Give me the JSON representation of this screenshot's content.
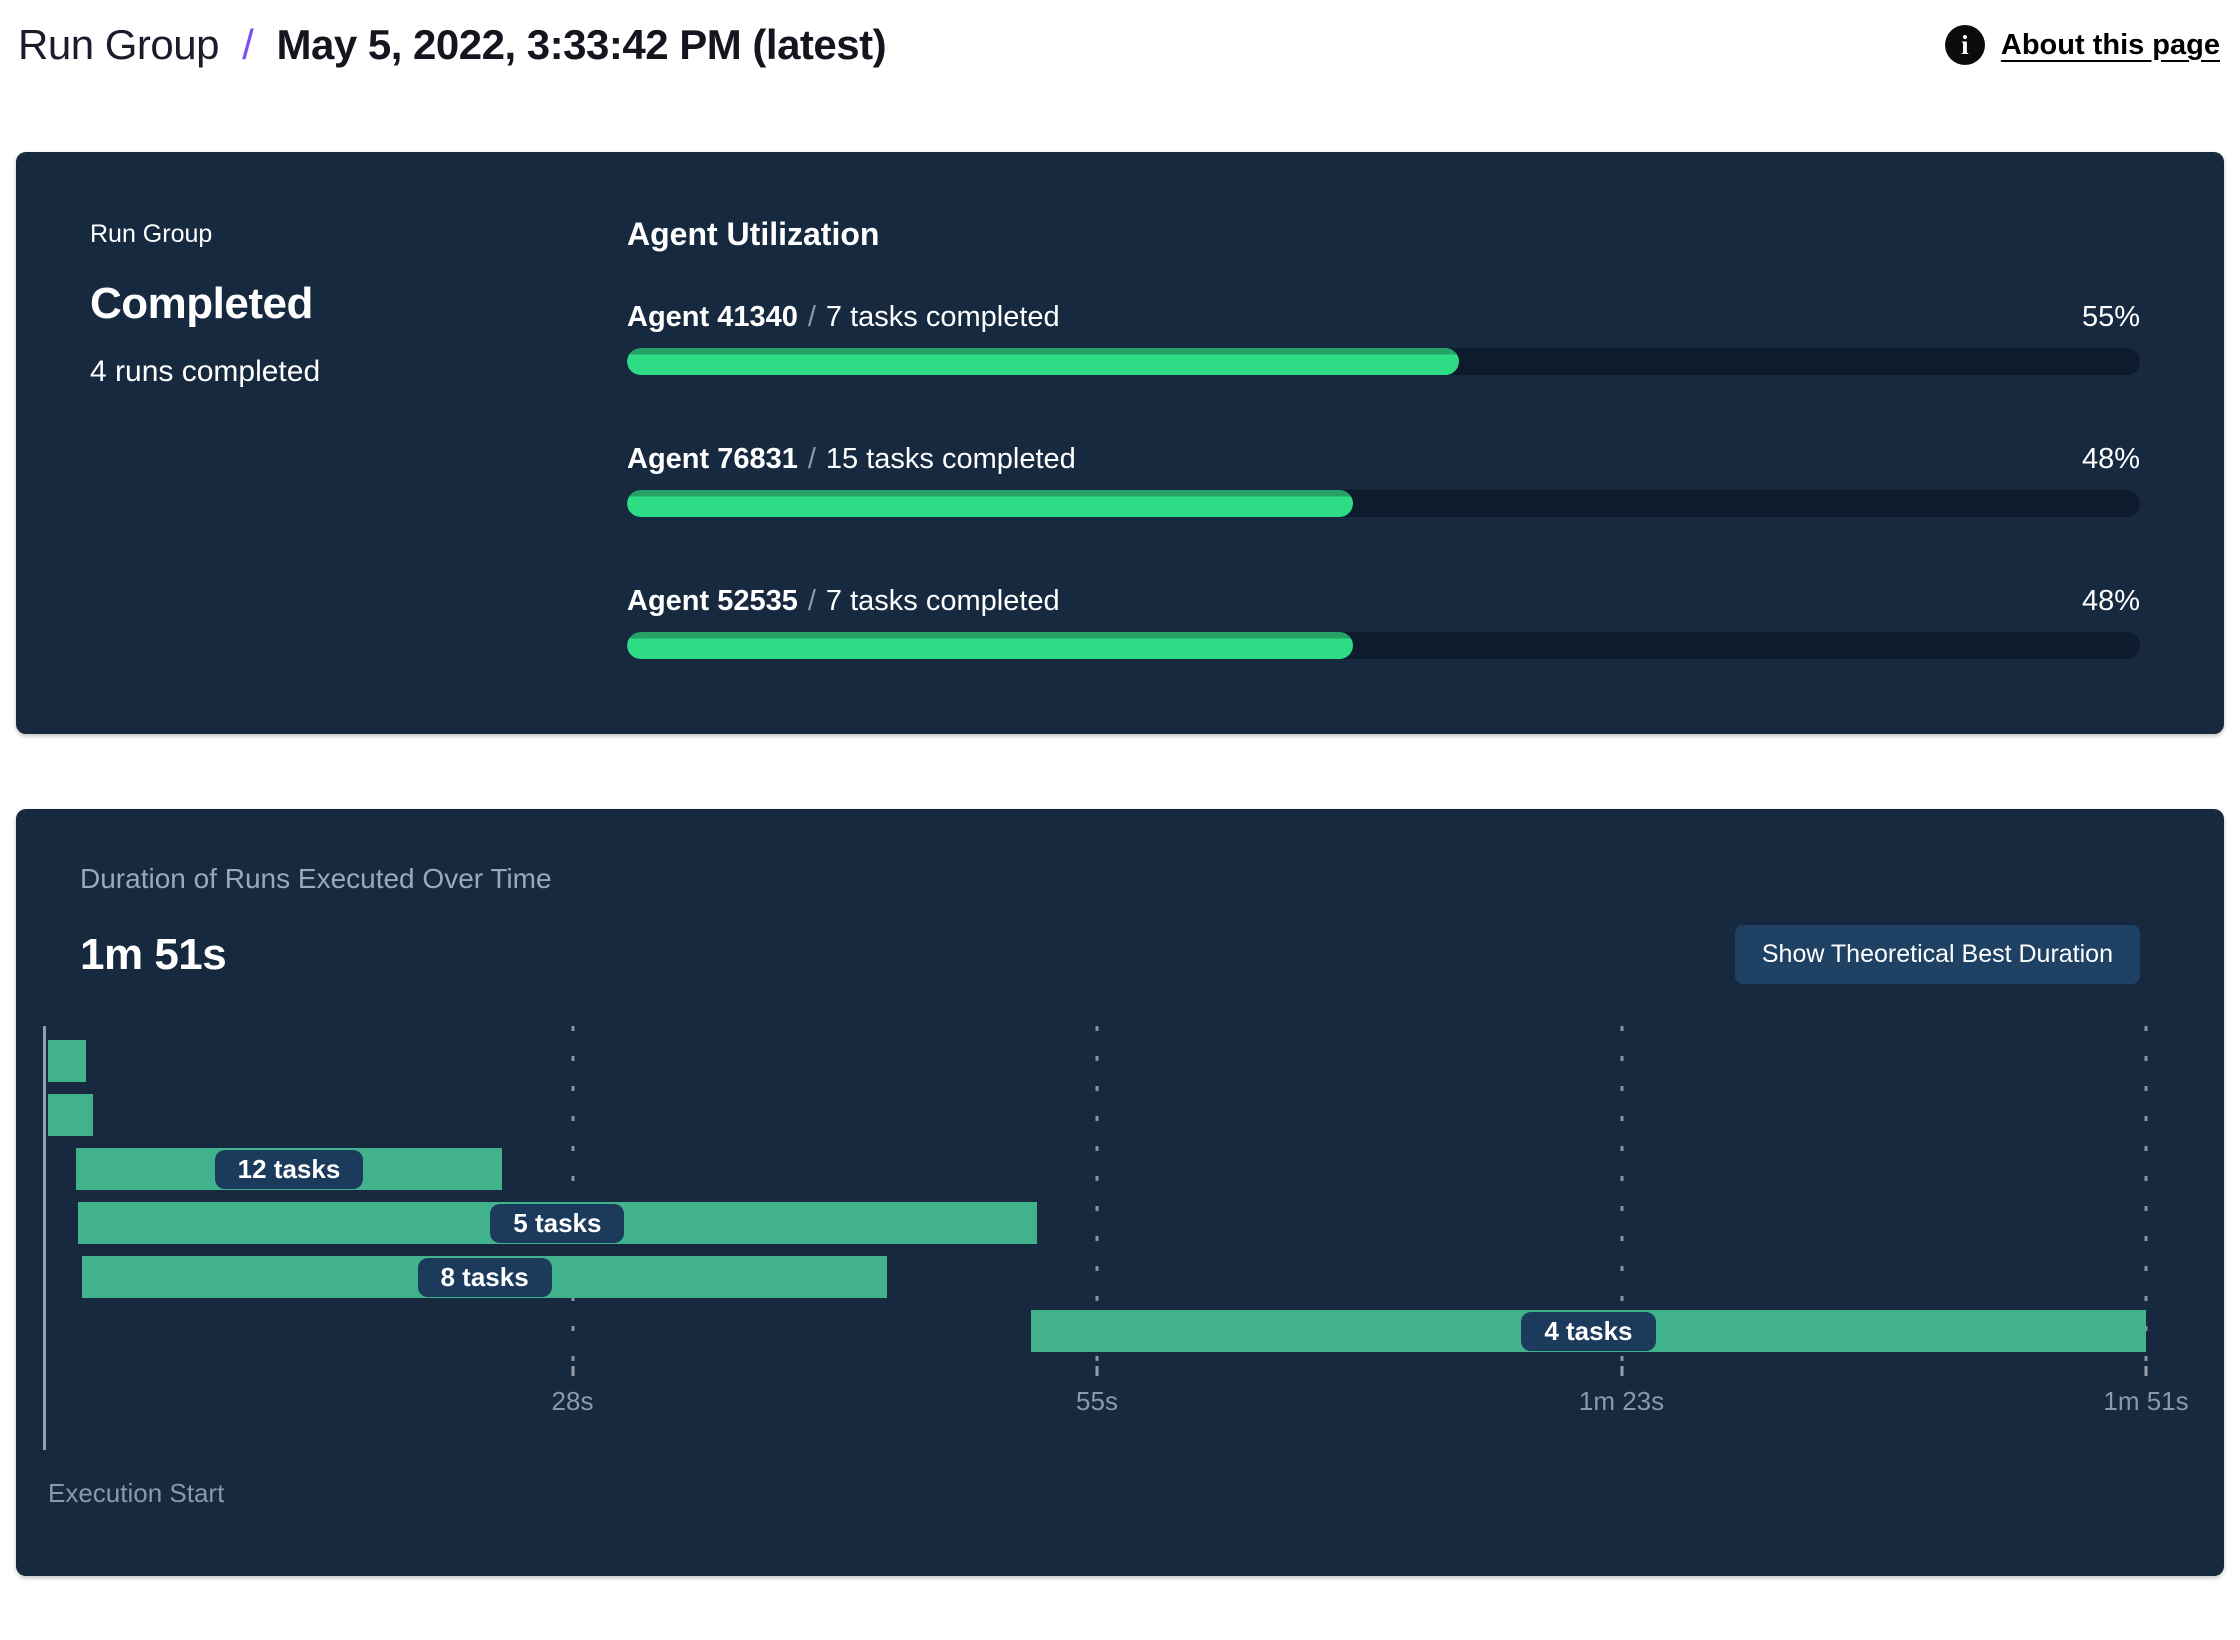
{
  "header": {
    "breadcrumb_root": "Run Group",
    "breadcrumb_separator": "/",
    "breadcrumb_current": "May 5, 2022, 3:33:42 PM (latest)",
    "info_icon_glyph": "i",
    "about_link": "About this page"
  },
  "status_card": {
    "label": "Run Group",
    "status": "Completed",
    "runs_completed": "4 runs completed",
    "utilization_title": "Agent Utilization",
    "agents": [
      {
        "name": "Agent 41340",
        "separator": "/",
        "tasks": "7 tasks completed",
        "percent": 55,
        "percent_label": "55%"
      },
      {
        "name": "Agent 76831",
        "separator": "/",
        "tasks": "15 tasks completed",
        "percent": 48,
        "percent_label": "48%"
      },
      {
        "name": "Agent 52535",
        "separator": "/",
        "tasks": "7 tasks completed",
        "percent": 48,
        "percent_label": "48%"
      }
    ]
  },
  "duration_card": {
    "title": "Duration of Runs Executed Over Time",
    "total_duration": "1m 51s",
    "button_label": "Show Theoretical Best Duration",
    "axis_label_start": "Execution Start"
  },
  "chart_data": {
    "type": "gantt",
    "title": "Duration of Runs Executed Over Time",
    "total_duration_label": "1m 51s",
    "total_duration_s": 111,
    "x_axis": {
      "start_label": "Execution Start",
      "ticks": [
        {
          "label": "28s",
          "pct": 25
        },
        {
          "label": "55s",
          "pct": 50
        },
        {
          "label": "1m 23s",
          "pct": 75
        },
        {
          "label": "1m 51s",
          "pct": 100
        }
      ]
    },
    "runs": [
      {
        "row": 0,
        "start_s": 0,
        "end_s": 2.0,
        "tasks_label": null
      },
      {
        "row": 1,
        "start_s": 0,
        "end_s": 2.4,
        "tasks_label": null
      },
      {
        "row": 2,
        "start_s": 1.5,
        "end_s": 24.0,
        "tasks_label": "12 tasks"
      },
      {
        "row": 3,
        "start_s": 1.6,
        "end_s": 52.3,
        "tasks_label": "5 tasks"
      },
      {
        "row": 4,
        "start_s": 1.8,
        "end_s": 44.4,
        "tasks_label": "8 tasks"
      },
      {
        "row": 5,
        "start_s": 52.0,
        "end_s": 111.0,
        "tasks_label": "4 tasks"
      }
    ],
    "legend": "none",
    "grid": "vertical-dotted"
  },
  "colors": {
    "card_background": "#16293f",
    "progress_green": "#2edc86",
    "progress_green_dark": "#27a266",
    "gantt_green": "#41b28c",
    "track_navy": "#0d1b2d",
    "pill_navy": "#1b3a5c",
    "button_navy": "#1e4164",
    "muted_text": "#8a98ac",
    "breadcrumb_accent": "#7a4ff0"
  }
}
